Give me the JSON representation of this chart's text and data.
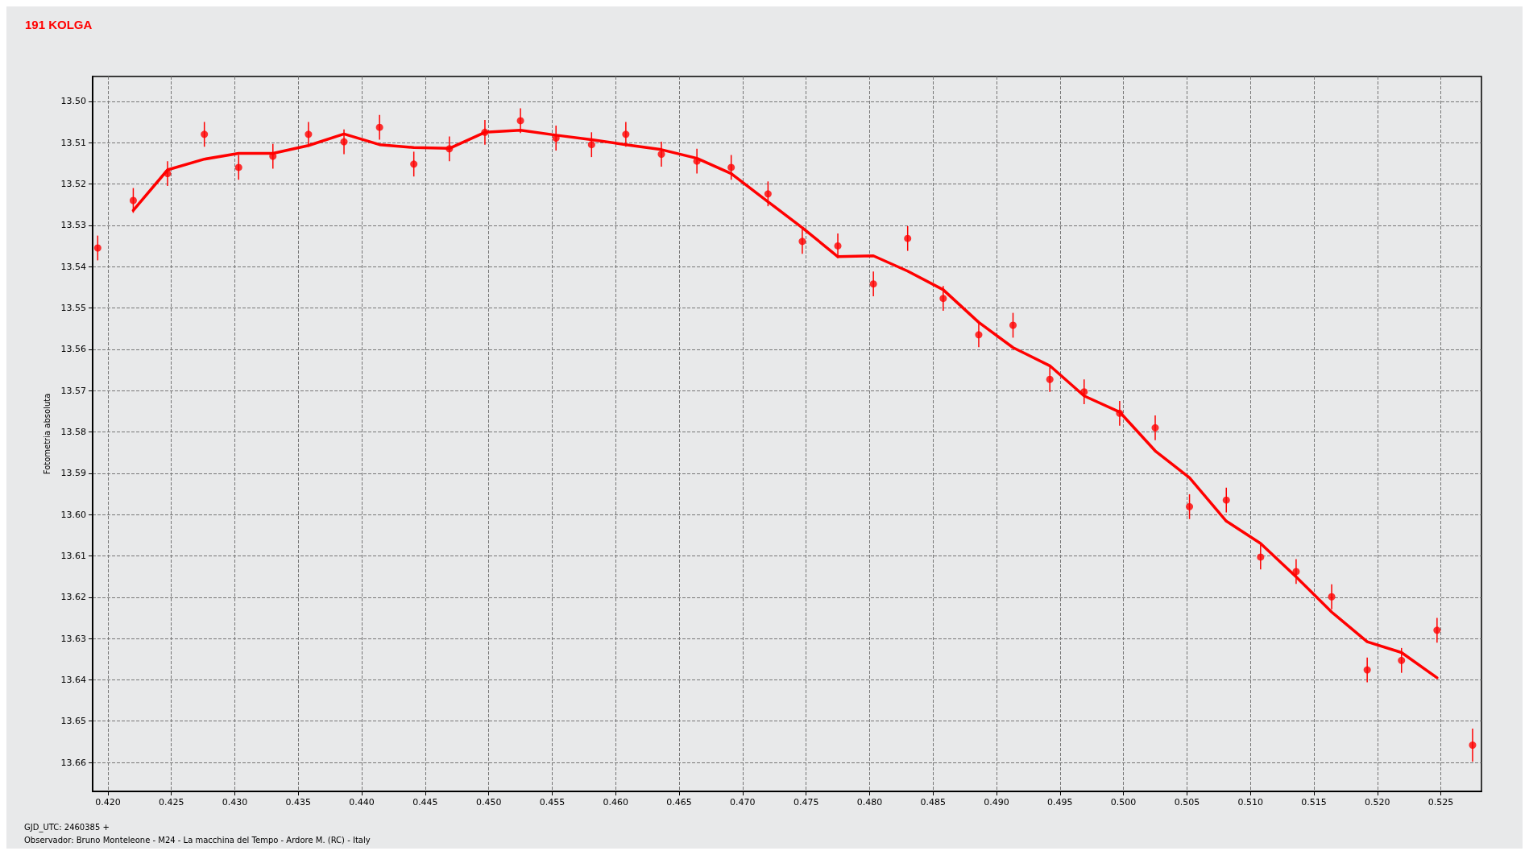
{
  "chart_data": {
    "type": "scatter",
    "title": "191 KOLGA",
    "ylabel": "Fotometria absoluta",
    "annotations": [
      "GJD_UTC: 2460385 +",
      "Observador: Bruno Monteleone - M24 - La macchina del Tempo - Ardore M. (RC) - Italy"
    ],
    "series": [
      {
        "color": "#ff0000",
        "marker": "circle",
        "x": [
          0.4192,
          0.422,
          0.4247,
          0.4276,
          0.4303,
          0.433,
          0.4358,
          0.4386,
          0.4414,
          0.4441,
          0.4469,
          0.4497,
          0.4525,
          0.4553,
          0.4581,
          0.4608,
          0.4636,
          0.4664,
          0.4691,
          0.472,
          0.4747,
          0.4775,
          0.4803,
          0.483,
          0.4858,
          0.4886,
          0.4913,
          0.4942,
          0.4969,
          0.4997,
          0.5025,
          0.5052,
          0.5081,
          0.5108,
          0.5136,
          0.5164,
          0.5192,
          0.5219,
          0.5247,
          0.5275
        ],
        "values": [
          13.5355,
          13.524,
          13.5175,
          13.508,
          13.516,
          13.5133,
          13.508,
          13.5098,
          13.5063,
          13.5152,
          13.5115,
          13.5075,
          13.5047,
          13.5089,
          13.5105,
          13.508,
          13.5128,
          13.5145,
          13.516,
          13.5224,
          13.5339,
          13.535,
          13.5442,
          13.5332,
          13.5477,
          13.5565,
          13.5542,
          13.5673,
          13.5703,
          13.5755,
          13.579,
          13.5981,
          13.5965,
          13.6103,
          13.6138,
          13.6199,
          13.6376,
          13.6353,
          13.628,
          13.6558
        ],
        "errors": [
          0.003,
          0.003,
          0.003,
          0.003,
          0.003,
          0.003,
          0.003,
          0.003,
          0.003,
          0.003,
          0.003,
          0.003,
          0.003,
          0.003,
          0.003,
          0.003,
          0.003,
          0.003,
          0.003,
          0.003,
          0.003,
          0.003,
          0.003,
          0.003,
          0.003,
          0.003,
          0.003,
          0.003,
          0.003,
          0.003,
          0.003,
          0.003,
          0.003,
          0.003,
          0.003,
          0.003,
          0.003,
          0.003,
          0.003,
          0.004
        ]
      },
      {
        "type": "line",
        "color": "#ff0000",
        "line_style": "solid",
        "marker": "none",
        "x": [
          0.422,
          0.4247,
          0.4276,
          0.4303,
          0.433,
          0.4358,
          0.4386,
          0.4414,
          0.4441,
          0.4469,
          0.4497,
          0.4525,
          0.4553,
          0.4581,
          0.4608,
          0.4636,
          0.4664,
          0.4691,
          0.472,
          0.4747,
          0.4775,
          0.4803,
          0.483,
          0.4858,
          0.4886,
          0.4913,
          0.4942,
          0.4969,
          0.4997,
          0.5025,
          0.5052,
          0.5081,
          0.5108,
          0.5136,
          0.5164,
          0.5192,
          0.5219,
          0.5247
        ],
        "values": [
          13.5264,
          13.5166,
          13.514,
          13.5126,
          13.5126,
          13.5107,
          13.5079,
          13.5105,
          13.5112,
          13.5114,
          13.5075,
          13.507,
          13.5082,
          13.5093,
          13.5105,
          13.5117,
          13.5138,
          13.5175,
          13.5243,
          13.5306,
          13.5376,
          13.5374,
          13.5411,
          13.5456,
          13.5535,
          13.5596,
          13.564,
          13.5713,
          13.5752,
          13.5846,
          13.5911,
          13.6016,
          13.607,
          13.6151,
          13.6236,
          13.6308,
          13.6334,
          13.6395
        ]
      }
    ],
    "xlim": [
      0.4188,
      0.5282
    ],
    "xticks": [
      {
        "value": 0.42,
        "label": "0.420"
      },
      0.425,
      {
        "value": 0.43,
        "label": "0.430"
      },
      0.435,
      {
        "value": 0.44,
        "label": "0.440"
      },
      0.445,
      {
        "value": 0.45,
        "label": "0.450"
      },
      0.455,
      {
        "value": 0.46,
        "label": "0.460"
      },
      0.465,
      {
        "value": 0.47,
        "label": "0.470"
      },
      0.475,
      {
        "value": 0.48,
        "label": "0.480"
      },
      0.485,
      {
        "value": 0.49,
        "label": "0.490"
      },
      0.495,
      {
        "value": 0.5,
        "label": "0.500"
      },
      0.505,
      {
        "value": 0.51,
        "label": "0.510"
      },
      0.515,
      {
        "value": 0.52,
        "label": "0.520"
      },
      0.525
    ],
    "ylim": [
      13.667,
      13.494
    ],
    "yticks": [
      {
        "value": 13.5,
        "label": "13.50"
      },
      13.51,
      13.52,
      13.53,
      13.54,
      13.55,
      13.56,
      13.57,
      13.58,
      13.59,
      {
        "value": 13.6,
        "label": "13.60"
      },
      13.61,
      13.62,
      13.63,
      13.64,
      13.65,
      13.66
    ],
    "grid": true
  }
}
